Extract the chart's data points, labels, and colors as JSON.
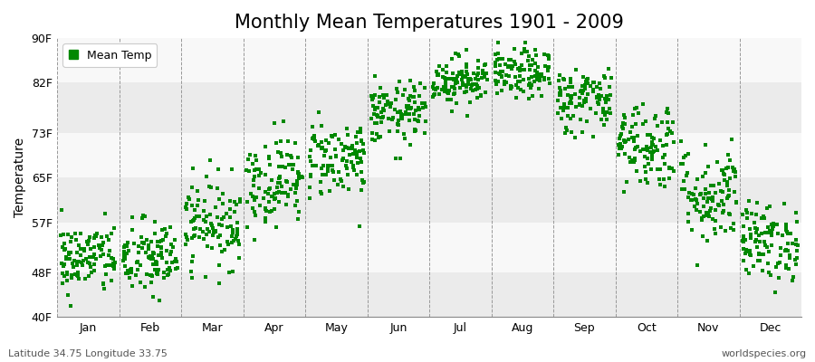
{
  "title": "Monthly Mean Temperatures 1901 - 2009",
  "ylabel": "Temperature",
  "ytick_values": [
    40,
    48,
    57,
    65,
    73,
    82,
    90
  ],
  "ytick_labels": [
    "40F",
    "48F",
    "57F",
    "65F",
    "73F",
    "82F",
    "90F"
  ],
  "ylim": [
    40,
    90
  ],
  "months": [
    "Jan",
    "Feb",
    "Mar",
    "Apr",
    "May",
    "Jun",
    "Jul",
    "Aug",
    "Sep",
    "Oct",
    "Nov",
    "Dec"
  ],
  "n_years": 109,
  "mean_temps_F": [
    50.5,
    50.5,
    57.0,
    64.5,
    68.5,
    76.5,
    82.5,
    83.5,
    79.0,
    71.0,
    62.0,
    53.5
  ],
  "spread_F": [
    3.2,
    3.5,
    4.0,
    4.0,
    3.5,
    2.8,
    2.2,
    2.2,
    3.0,
    4.0,
    4.5,
    3.5
  ],
  "dot_color": "#008800",
  "dot_size": 6,
  "figure_bg": "#ffffff",
  "plot_bg": "#ffffff",
  "band_colors": [
    "#ebebeb",
    "#f8f8f8"
  ],
  "grid_color": "#999999",
  "legend_label": "Mean Temp",
  "footnote_left": "Latitude 34.75 Longitude 33.75",
  "footnote_right": "worldspecies.org",
  "title_fontsize": 15,
  "axis_fontsize": 10,
  "tick_fontsize": 9,
  "footnote_fontsize": 8
}
